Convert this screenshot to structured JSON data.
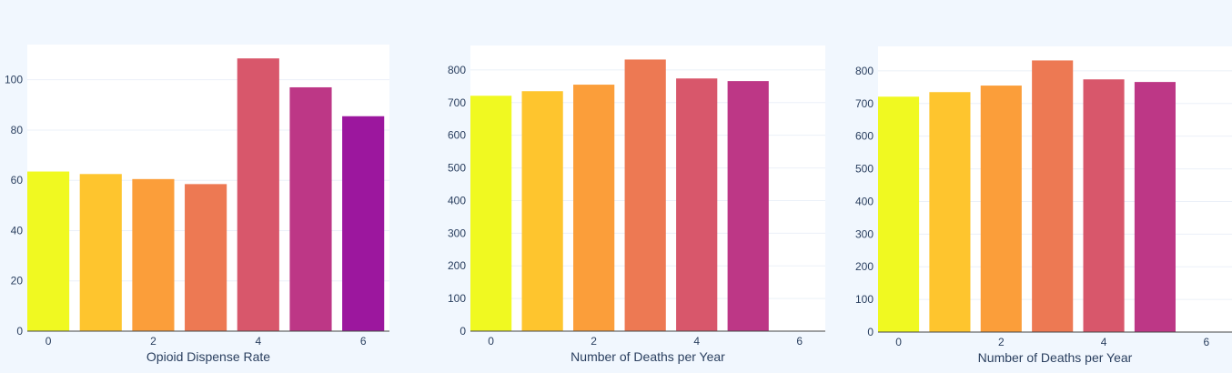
{
  "colors": {
    "page_background": "#f1f7fe",
    "plot_background": "#ffffff",
    "grid": "#ebf0f8",
    "axis_text": "#2a3f5f",
    "bar_palette": [
      "#f0f921",
      "#fec52e",
      "#fb9e3a",
      "#ed7953",
      "#d8576b",
      "#bd3786",
      "#9c179e"
    ]
  },
  "chart_data": [
    {
      "type": "bar",
      "x": [
        0,
        1,
        2,
        3,
        4,
        5,
        6
      ],
      "values": [
        63.5,
        62.5,
        60.5,
        58.5,
        108.5,
        97,
        85.5
      ],
      "title": "",
      "xlabel": "Opioid Dispense Rate",
      "ylabel": "",
      "xticks": [
        0,
        2,
        4,
        6
      ],
      "yticks": [
        0,
        20,
        40,
        60,
        80,
        100
      ],
      "xlim": [
        -0.4,
        6.5
      ],
      "ylim": [
        0,
        114
      ],
      "grid": true
    },
    {
      "type": "bar",
      "x": [
        0,
        1,
        2,
        3,
        4,
        5
      ],
      "values": [
        721,
        735,
        755,
        832,
        774,
        766
      ],
      "title": "",
      "xlabel": "Number of Deaths per Year",
      "ylabel": "",
      "xticks": [
        0,
        2,
        4,
        6
      ],
      "yticks": [
        0,
        100,
        200,
        300,
        400,
        500,
        600,
        700,
        800
      ],
      "xlim": [
        -0.4,
        6.5
      ],
      "ylim": [
        0,
        875
      ],
      "grid": true
    },
    {
      "type": "bar",
      "x": [
        0,
        1,
        2,
        3,
        4,
        5
      ],
      "values": [
        721,
        735,
        755,
        832,
        774,
        766
      ],
      "title": "",
      "xlabel": "Number of Deaths per Year",
      "ylabel": "",
      "xticks": [
        0,
        2,
        4,
        6
      ],
      "yticks": [
        0,
        100,
        200,
        300,
        400,
        500,
        600,
        700,
        800
      ],
      "xlim": [
        -0.4,
        6.5
      ],
      "ylim": [
        0,
        875
      ],
      "grid": true
    }
  ]
}
